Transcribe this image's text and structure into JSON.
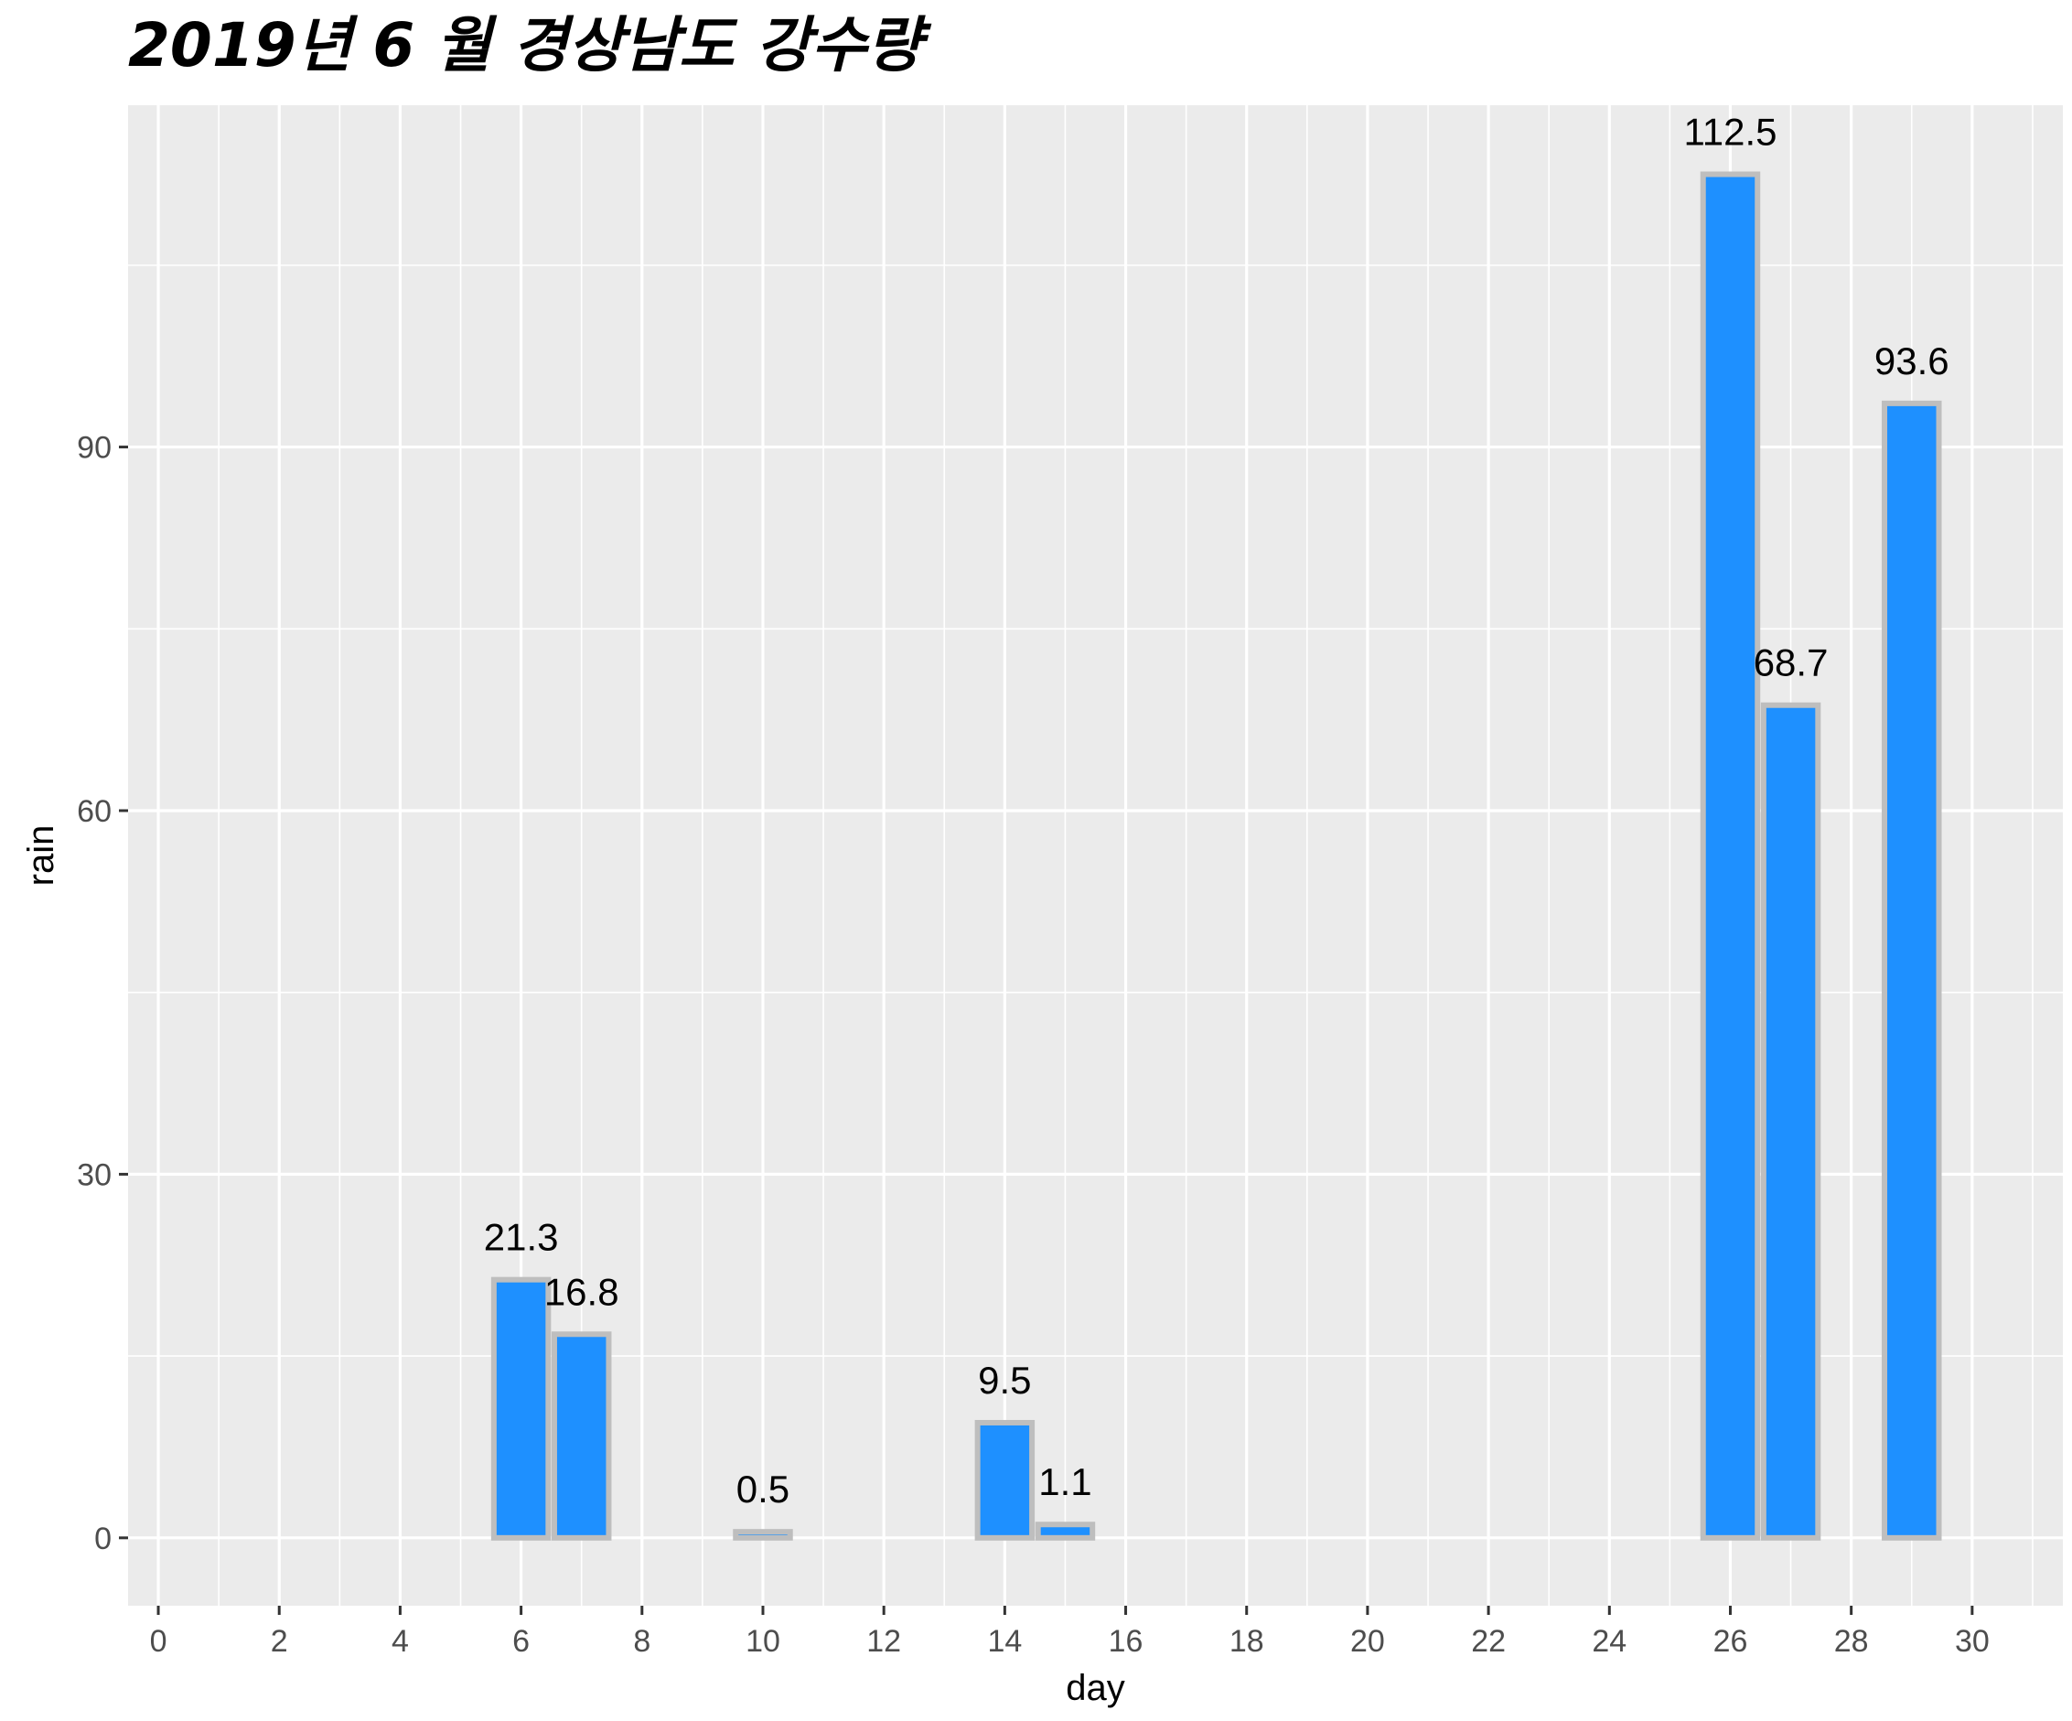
{
  "chart_data": {
    "type": "bar",
    "title": "2019년 6 월 경상남도 강수량",
    "xlabel": "day",
    "ylabel": "rain",
    "xlim": [
      -0.5,
      31.5
    ],
    "ylim": [
      -5.6,
      118.2
    ],
    "x_ticks": [
      0,
      2,
      4,
      6,
      8,
      10,
      12,
      14,
      16,
      18,
      20,
      22,
      24,
      26,
      28,
      30
    ],
    "y_ticks": [
      0,
      30,
      60,
      90
    ],
    "grid": true,
    "bar_fill": "#1E90FF",
    "bar_outline": "#BEBEBE",
    "panel_background": "#EBEBEB",
    "grid_color": "#FFFFFF",
    "points": [
      {
        "x": 6,
        "y": 21.3,
        "label": "21.3"
      },
      {
        "x": 7,
        "y": 16.8,
        "label": "16.8"
      },
      {
        "x": 10,
        "y": 0.5,
        "label": "0.5"
      },
      {
        "x": 14,
        "y": 9.5,
        "label": "9.5"
      },
      {
        "x": 15,
        "y": 1.1,
        "label": "1.1"
      },
      {
        "x": 26,
        "y": 112.5,
        "label": "112.5"
      },
      {
        "x": 27,
        "y": 68.7,
        "label": "68.7"
      },
      {
        "x": 29,
        "y": 93.6,
        "label": "93.6"
      }
    ]
  }
}
